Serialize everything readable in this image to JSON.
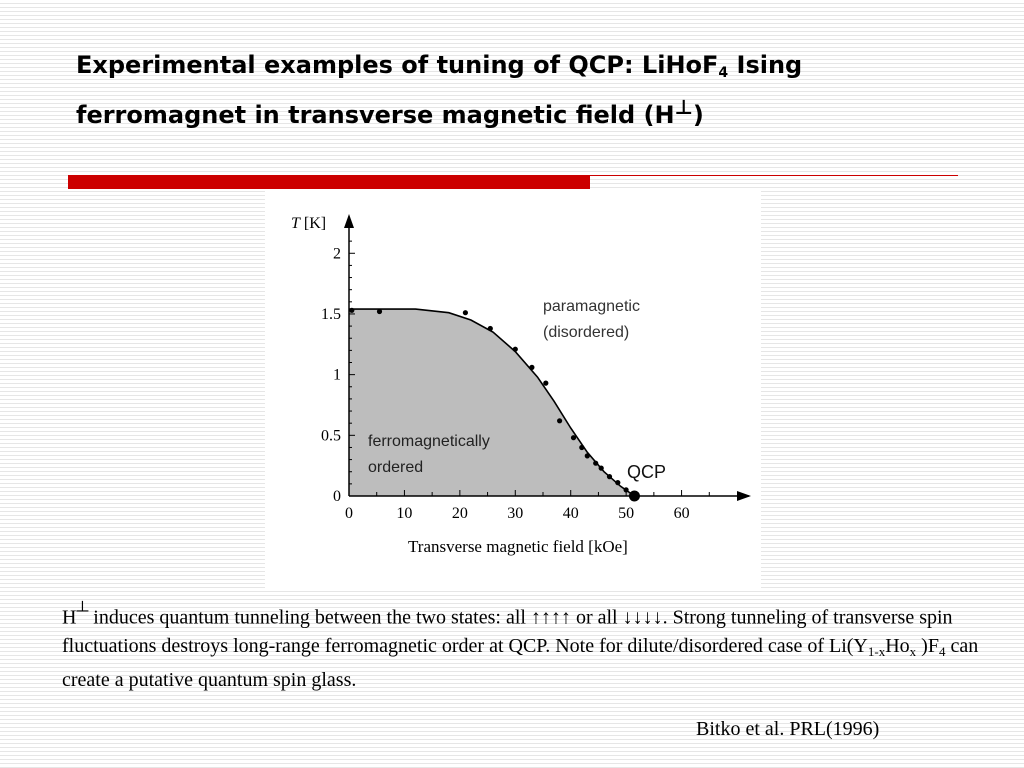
{
  "slide": {
    "title_part1": "Experimental examples of tuning of QCP: LiHoF",
    "title_sub": "4",
    "title_part2": "  Ising ferromagnet in transverse magnetic field (H",
    "title_perp": "⊥",
    "title_part3": ")",
    "accent_color": "#cc0000"
  },
  "body": {
    "h": "H",
    "perp": "┴",
    "line1_rest": " induces quantum tunneling between the two states: all ↑↑↑↑ or all ↓↓↓↓. Strong tunneling of transverse spin fluctuations destroys long-range ferromagnetic order at QCP. Note for dilute/disordered case of Li(Y",
    "sub1": "1-x",
    "mid": "Ho",
    "sub2": "x",
    "mid2": " )F",
    "sub3": "4",
    "tail": " can create a putative quantum spin glass."
  },
  "citation": "Bitko et al. PRL(1996)",
  "chart_data": {
    "type": "scatter",
    "ylabel_italic": "T",
    "ylabel_unit": " [K]",
    "xlabel": "Transverse magnetic field [kOe]",
    "x_ticks": [
      "0",
      "10",
      "20",
      "30",
      "40",
      "50",
      "60"
    ],
    "y_ticks": [
      "0",
      "0.5",
      "1",
      "1.5",
      "2"
    ],
    "xlim": [
      0,
      70
    ],
    "ylim": [
      0,
      2.2
    ],
    "region_labels": {
      "para_line1": "paramagnetic",
      "para_line2": "(disordered)",
      "ferro_line1": "ferromagnetically",
      "ferro_line2": "ordered"
    },
    "qcp_label": "QCP",
    "qcp_point": [
      51.5,
      0
    ],
    "phase_boundary": [
      [
        0,
        1.54
      ],
      [
        10,
        1.54
      ],
      [
        12,
        1.54
      ],
      [
        18,
        1.51
      ],
      [
        22,
        1.45
      ],
      [
        26,
        1.35
      ],
      [
        30,
        1.19
      ],
      [
        34,
        0.98
      ],
      [
        37,
        0.78
      ],
      [
        40,
        0.56
      ],
      [
        43,
        0.36
      ],
      [
        46,
        0.2
      ],
      [
        49,
        0.08
      ],
      [
        51.5,
        0
      ]
    ],
    "series": [
      {
        "points": [
          [
            0.5,
            1.53
          ],
          [
            5.5,
            1.52
          ],
          [
            21,
            1.51
          ],
          [
            25.5,
            1.38
          ],
          [
            30,
            1.21
          ],
          [
            33,
            1.06
          ],
          [
            35.5,
            0.93
          ],
          [
            38,
            0.62
          ],
          [
            40.5,
            0.48
          ],
          [
            42,
            0.4
          ],
          [
            43,
            0.33
          ],
          [
            44.5,
            0.27
          ],
          [
            45.5,
            0.23
          ],
          [
            47,
            0.16
          ],
          [
            48.5,
            0.11
          ],
          [
            50,
            0.05
          ]
        ]
      }
    ],
    "colors": {
      "ordered_fill": "#bdbdbd",
      "line": "#000000"
    }
  }
}
